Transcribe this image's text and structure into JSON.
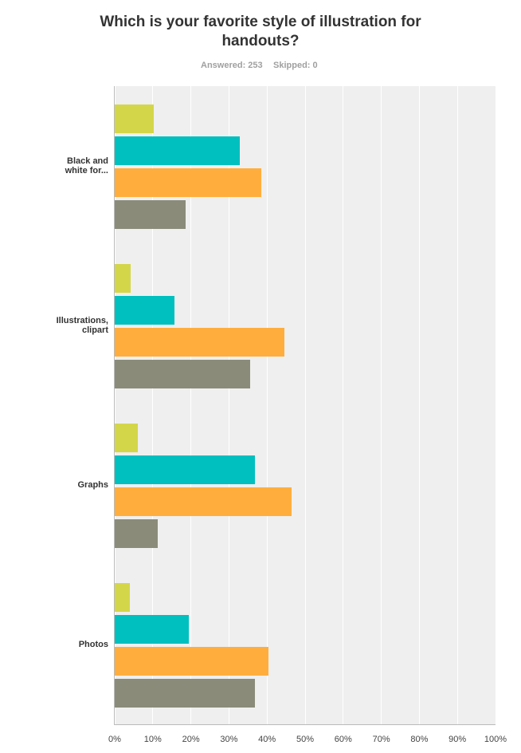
{
  "chart_data": {
    "type": "hbar",
    "title": "Which is your favorite style of illustration for handouts?",
    "answered": "Answered: 253",
    "skipped": "Skipped: 0",
    "categories": [
      "Black and white for...",
      "Illustrations, clipart",
      "Graphs",
      "Photos"
    ],
    "series": [
      {
        "color": "#d4d64a",
        "values": [
          10.3,
          4.2,
          6.1,
          4.0
        ]
      },
      {
        "color": "#00bfbf",
        "values": [
          32.8,
          15.7,
          36.8,
          19.5
        ]
      },
      {
        "color": "#ffae3d",
        "values": [
          38.5,
          44.6,
          46.4,
          40.4
        ]
      },
      {
        "color": "#8b8b7a",
        "values": [
          18.6,
          35.6,
          11.3,
          36.8
        ]
      }
    ],
    "xlim": [
      0,
      100
    ],
    "xticks": [
      {
        "value": 0,
        "label": "0%"
      },
      {
        "value": 10,
        "label": "10%"
      },
      {
        "value": 20,
        "label": "20%"
      },
      {
        "value": 30,
        "label": "30%"
      },
      {
        "value": 40,
        "label": "40%"
      },
      {
        "value": 50,
        "label": "50%"
      },
      {
        "value": 60,
        "label": "60%"
      },
      {
        "value": 70,
        "label": "70%"
      },
      {
        "value": 80,
        "label": "80%"
      },
      {
        "value": 90,
        "label": "90%"
      },
      {
        "value": 100,
        "label": "100%"
      }
    ],
    "grid": true,
    "background": "#efefef"
  }
}
